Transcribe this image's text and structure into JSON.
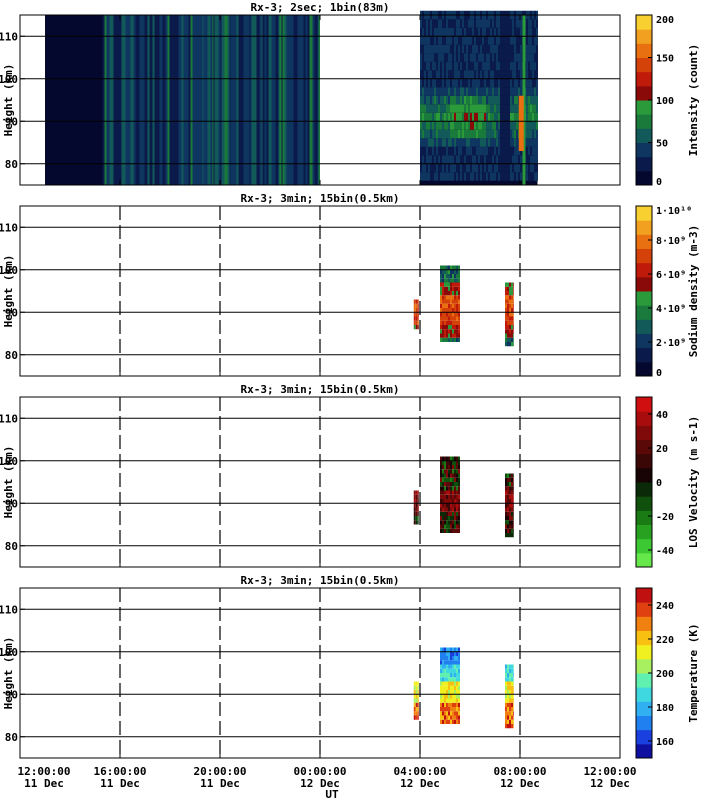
{
  "chart_data": [
    {
      "type": "heatmap",
      "title": "Rx-3;  2sec; 1bin(83m)",
      "ylabel": "Height (km)",
      "ylim": [
        75,
        115
      ],
      "yticks": [
        "110",
        "100",
        "90",
        "80"
      ],
      "colorbar": {
        "label": "Intensity (count)",
        "ticks": [
          "200",
          "150",
          "100",
          "50",
          "0"
        ],
        "range": [
          0,
          200
        ]
      },
      "colors": [
        "#05082e",
        "#0a1a4a",
        "#0f3660",
        "#125a5a",
        "#1a7a3c",
        "#2a9a3a",
        "#8a0a0a",
        "#c01a0a",
        "#d4420a",
        "#e87010",
        "#f2a020",
        "#f8d030"
      ],
      "blocks": [
        {
          "t_start": 13.0,
          "t_end": 15.3,
          "note": "dark"
        },
        {
          "t_start": 15.3,
          "t_end": 24.0,
          "note": "faint green"
        },
        {
          "t_start": 28.0,
          "t_end": 32.7,
          "note": "structured, layer near 90 km"
        }
      ]
    },
    {
      "type": "heatmap",
      "title": "Rx-3; 3min; 15bin(0.5km)",
      "ylabel": "Height (km)",
      "ylim": [
        75,
        115
      ],
      "yticks": [
        "110",
        "100",
        "90",
        "80"
      ],
      "colorbar": {
        "label": "Sodium density (m-3)",
        "ticks": [
          "1·10¹⁰",
          "8·10⁹",
          "6·10⁹",
          "4·10⁹",
          "2·10⁹",
          "0"
        ],
        "range": [
          0,
          10000000000
        ]
      },
      "colors": [
        "#05082e",
        "#0a1a4a",
        "#0f3660",
        "#125a5a",
        "#1a7a3c",
        "#2a9a3a",
        "#8a0a0a",
        "#c01a0a",
        "#d4420a",
        "#e87010",
        "#f2a020",
        "#f8d030"
      ],
      "blocks": [
        {
          "t_start": 27.75,
          "t_end": 27.95,
          "h_min": 86,
          "h_max": 93
        },
        {
          "t_start": 28.8,
          "t_end": 29.6,
          "h_min": 83,
          "h_max": 101
        },
        {
          "t_start": 31.4,
          "t_end": 31.75,
          "h_min": 82,
          "h_max": 97
        }
      ]
    },
    {
      "type": "heatmap",
      "title": "Rx-3; 3min; 15bin(0.5km)",
      "ylabel": "Height (km)",
      "ylim": [
        75,
        115
      ],
      "yticks": [
        "110",
        "100",
        "90",
        "80"
      ],
      "colorbar": {
        "label": "LOS Velocity (m s-1)",
        "ticks": [
          "40",
          "20",
          "0",
          "-20",
          "-40"
        ],
        "range": [
          -50,
          50
        ]
      },
      "colors": [
        "#66e84a",
        "#3cc832",
        "#28a020",
        "#1a7a14",
        "#0f500c",
        "#0a2a08",
        "#180404",
        "#3a0606",
        "#5a0808",
        "#800a0a",
        "#a80c0c",
        "#d01010"
      ],
      "blocks": [
        {
          "t_start": 27.75,
          "t_end": 27.95,
          "h_min": 85,
          "h_max": 93
        },
        {
          "t_start": 28.8,
          "t_end": 29.6,
          "h_min": 83,
          "h_max": 101
        },
        {
          "t_start": 31.4,
          "t_end": 31.75,
          "h_min": 82,
          "h_max": 97
        }
      ]
    },
    {
      "type": "heatmap",
      "title": "Rx-3; 3min; 15bin(0.5km)",
      "ylabel": "Height (km)",
      "ylim": [
        75,
        115
      ],
      "yticks": [
        "110",
        "100",
        "90",
        "80"
      ],
      "colorbar": {
        "label": "Temperature (K)",
        "ticks": [
          "240",
          "220",
          "200",
          "180",
          "160"
        ],
        "range": [
          150,
          250
        ]
      },
      "colors": [
        "#1010a0",
        "#1a40e0",
        "#2080f0",
        "#30b0f0",
        "#40d8e0",
        "#60f0b0",
        "#a8f060",
        "#f0f020",
        "#f8c010",
        "#f08010",
        "#e04010",
        "#c01010"
      ],
      "blocks": [
        {
          "t_start": 27.75,
          "t_end": 27.95,
          "h_min": 84,
          "h_max": 93
        },
        {
          "t_start": 28.8,
          "t_end": 29.6,
          "h_min": 83,
          "h_max": 101
        },
        {
          "t_start": 31.4,
          "t_end": 31.75,
          "h_min": 82,
          "h_max": 97
        }
      ]
    }
  ],
  "xaxis": {
    "label": "UT",
    "range_hours": [
      12,
      36
    ],
    "dashed_times": [
      16,
      20,
      24,
      28,
      32
    ],
    "ticks": [
      {
        "t": 12,
        "time": "12:00:00",
        "date": "11 Dec"
      },
      {
        "t": 16,
        "time": "16:00:00",
        "date": "11 Dec"
      },
      {
        "t": 20,
        "time": "20:00:00",
        "date": "11 Dec"
      },
      {
        "t": 24,
        "time": "00:00:00",
        "date": "12 Dec"
      },
      {
        "t": 28,
        "time": "04:00:00",
        "date": "12 Dec"
      },
      {
        "t": 32,
        "time": "08:00:00",
        "date": "12 Dec"
      },
      {
        "t": 36,
        "time": "12:00:00",
        "date": "12 Dec"
      }
    ]
  }
}
